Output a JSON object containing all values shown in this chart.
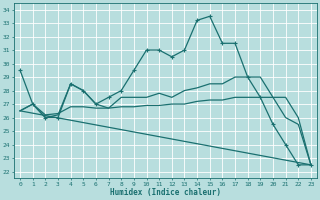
{
  "xlabel": "Humidex (Indice chaleur)",
  "xlim": [
    -0.5,
    23.5
  ],
  "ylim": [
    21.5,
    34.5
  ],
  "yticks": [
    22,
    23,
    24,
    25,
    26,
    27,
    28,
    29,
    30,
    31,
    32,
    33,
    34
  ],
  "xticks": [
    0,
    1,
    2,
    3,
    4,
    5,
    6,
    7,
    8,
    9,
    10,
    11,
    12,
    13,
    14,
    15,
    16,
    17,
    18,
    19,
    20,
    21,
    22,
    23
  ],
  "bg_color": "#b8dede",
  "line_color": "#1a7070",
  "grid_color": "#ffffff",
  "line1_x": [
    0,
    1,
    2,
    3,
    4,
    5,
    6,
    7,
    8,
    9,
    10,
    11,
    12,
    13,
    14,
    15,
    16,
    17,
    18,
    19,
    20,
    21,
    22,
    23
  ],
  "line1_y": [
    29.5,
    27.0,
    26.0,
    26.0,
    28.5,
    28.0,
    27.0,
    27.5,
    28.0,
    29.5,
    31.0,
    31.0,
    30.5,
    31.0,
    33.2,
    33.5,
    31.5,
    31.5,
    29.0,
    27.5,
    25.5,
    24.0,
    22.5,
    22.5
  ],
  "line2_x": [
    0,
    1,
    2,
    3,
    4,
    5,
    6,
    7,
    8,
    9,
    10,
    11,
    12,
    13,
    14,
    15,
    16,
    17,
    18,
    19,
    20,
    21,
    22,
    23
  ],
  "line2_y": [
    26.5,
    27.0,
    26.0,
    26.2,
    28.5,
    28.0,
    27.0,
    26.7,
    27.5,
    27.5,
    27.5,
    27.8,
    27.5,
    28.0,
    28.2,
    28.5,
    28.5,
    29.0,
    29.0,
    29.0,
    27.5,
    26.0,
    25.5,
    22.5
  ],
  "line3_x": [
    0,
    1,
    2,
    3,
    4,
    5,
    6,
    7,
    8,
    9,
    10,
    11,
    12,
    13,
    14,
    15,
    16,
    17,
    18,
    19,
    20,
    21,
    22,
    23
  ],
  "line3_y": [
    26.5,
    27.0,
    26.2,
    26.3,
    26.8,
    26.8,
    26.7,
    26.7,
    26.8,
    26.8,
    26.9,
    26.9,
    27.0,
    27.0,
    27.2,
    27.3,
    27.3,
    27.5,
    27.5,
    27.5,
    27.5,
    27.5,
    26.0,
    22.5
  ],
  "line4_x": [
    0,
    23
  ],
  "line4_y": [
    26.5,
    22.5
  ]
}
